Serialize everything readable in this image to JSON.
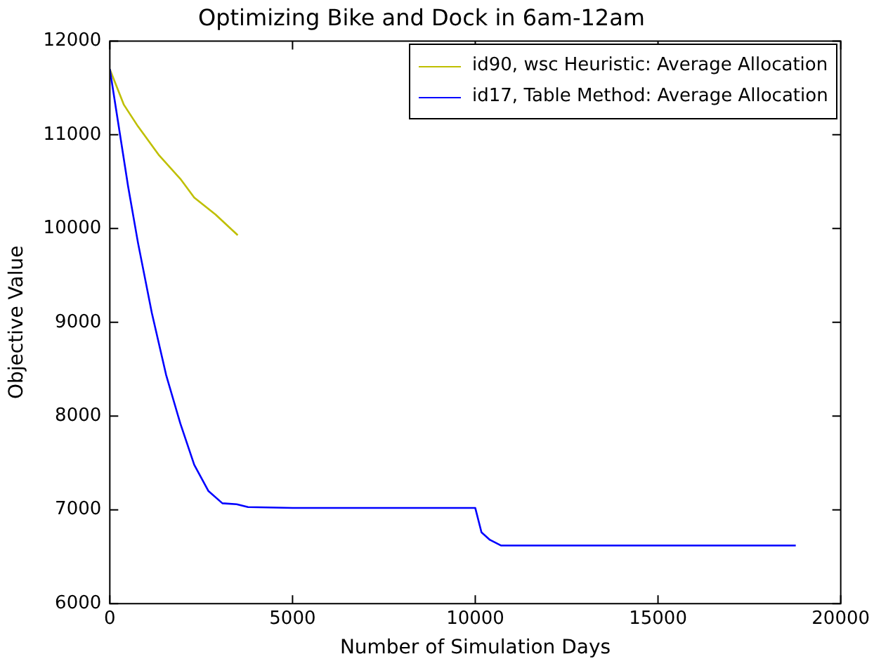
{
  "chart_data": {
    "type": "line",
    "title": "Optimizing Bike and Dock in 6am-12am",
    "xlabel": "Number of Simulation Days",
    "ylabel": "Objective Value",
    "xlim": [
      0,
      20000
    ],
    "xticks": [
      0,
      5000,
      10000,
      15000,
      20000
    ],
    "ylim": [
      6000,
      12000
    ],
    "yticks": [
      6000,
      7000,
      8000,
      9000,
      10000,
      11000,
      12000
    ],
    "grid": false,
    "legend": "top right",
    "marker": "none",
    "line_style": "solid",
    "series": [
      {
        "name": "id90, wsc Heuristic: Average Allocation",
        "color": "#bfbf00",
        "x": [
          0,
          385,
          770,
          1350,
          1930,
          2310,
          2890,
          3500
        ],
        "values": [
          11700,
          11320,
          11090,
          10780,
          10530,
          10330,
          10150,
          9930
        ]
      },
      {
        "name": "id17, Table Method: Average Allocation",
        "color": "#0000ff",
        "x": [
          0,
          500,
          770,
          1150,
          1540,
          1930,
          2310,
          2700,
          3080,
          3470,
          3780,
          5000,
          7000,
          10000,
          10170,
          10400,
          10700,
          12000,
          18770
        ],
        "values": [
          11700,
          10450,
          9850,
          9100,
          8440,
          7920,
          7480,
          7200,
          7070,
          7060,
          7030,
          7020,
          7020,
          7020,
          6760,
          6680,
          6620,
          6620,
          6620
        ]
      }
    ]
  }
}
